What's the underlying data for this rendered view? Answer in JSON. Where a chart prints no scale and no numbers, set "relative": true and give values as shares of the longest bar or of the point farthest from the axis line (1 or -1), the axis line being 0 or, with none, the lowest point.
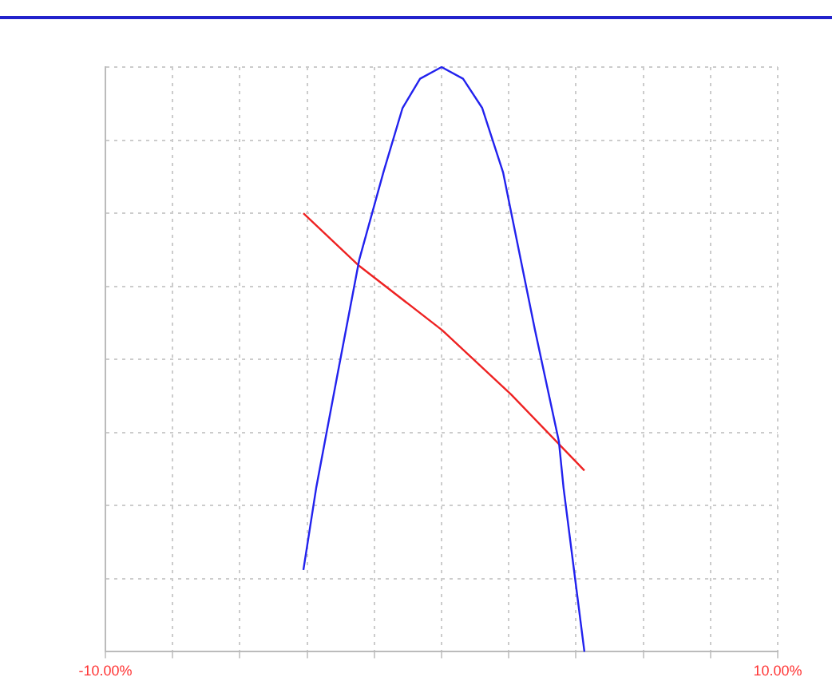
{
  "chart_data": {
    "type": "line",
    "relative": true,
    "xlim": [
      -10,
      10
    ],
    "xticks": [
      {
        "value": -10,
        "label": "-10.00%"
      },
      {
        "value": -8,
        "label": null
      },
      {
        "value": -6,
        "label": null
      },
      {
        "value": -4,
        "label": null
      },
      {
        "value": -2,
        "label": null
      },
      {
        "value": 0,
        "label": null
      },
      {
        "value": 2,
        "label": null
      },
      {
        "value": 4,
        "label": null
      },
      {
        "value": 6,
        "label": null
      },
      {
        "value": 8,
        "label": null
      },
      {
        "value": 10,
        "label": "10.00%"
      }
    ],
    "series": [
      {
        "color": "#2222ee",
        "x": [
          -4.11,
          -3.73,
          -3.11,
          -2.45,
          -1.73,
          -1.16,
          -0.64,
          0,
          0.64,
          1.21,
          1.83,
          2.78,
          3.49,
          3.63,
          4.25
        ],
        "values": [
          0.14,
          0.28,
          0.47,
          0.67,
          0.82,
          0.93,
          0.98,
          1,
          0.98,
          0.93,
          0.82,
          0.55,
          0.36,
          0.28,
          0
        ]
      },
      {
        "color": "#ee2222",
        "x": [
          -4.11,
          -2.45,
          0.02,
          2.07,
          4.25
        ],
        "values": [
          0.75,
          0.66,
          0.55,
          0.44,
          0.31
        ]
      }
    ],
    "grid": true,
    "legend": false,
    "marker": "none",
    "line_style": "solid"
  }
}
